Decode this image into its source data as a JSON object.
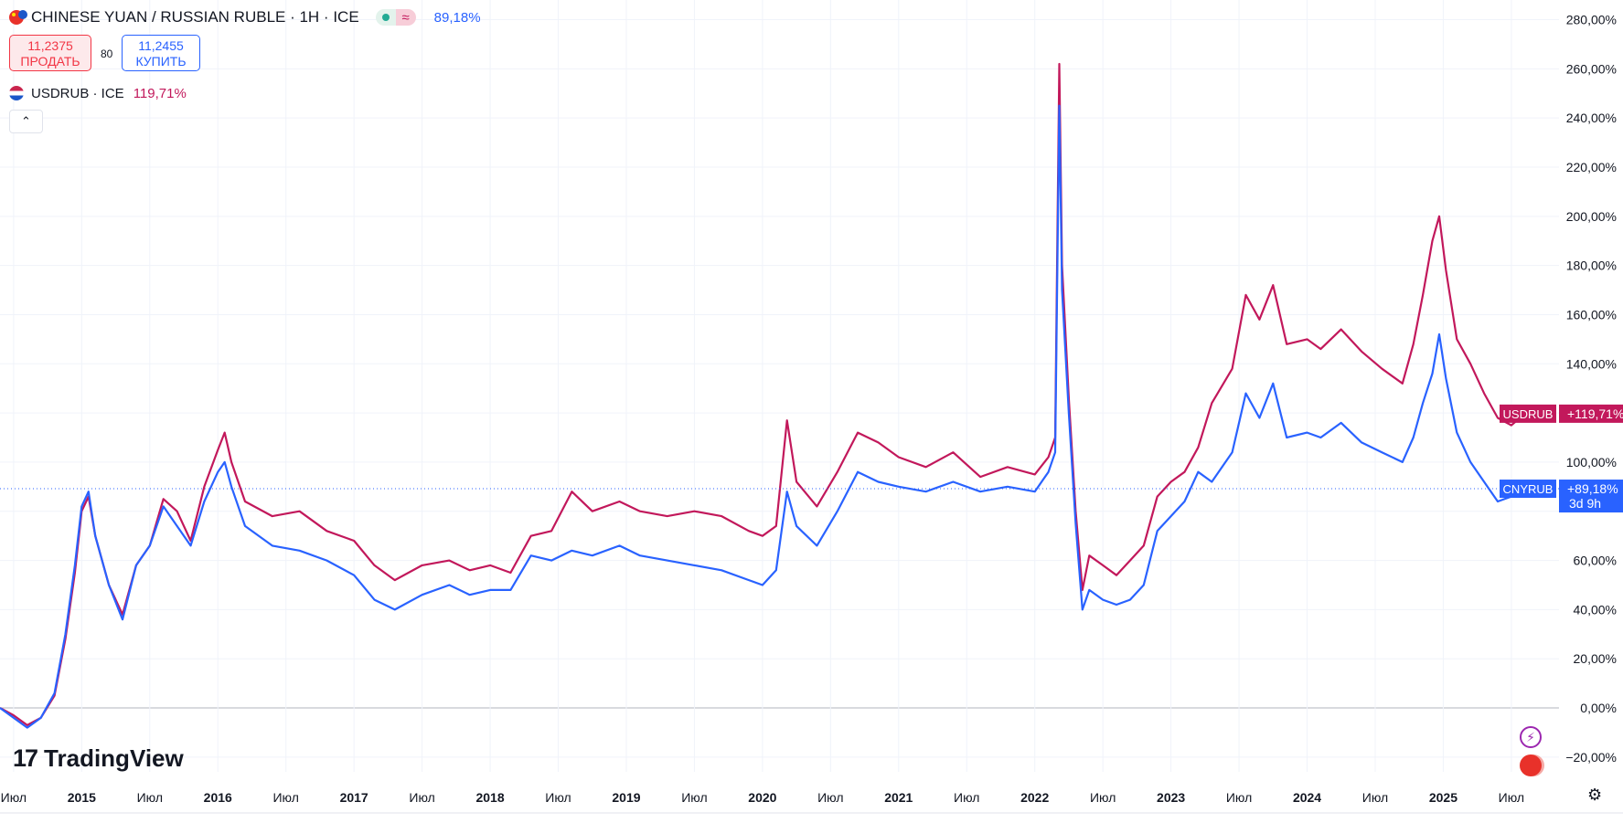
{
  "header": {
    "title": "CHINESE YUAN / RUSSIAN RUBLE · 1H · ICE",
    "main_change": "89,18%",
    "sell_price": "11,2375",
    "sell_label": "ПРОДАТЬ",
    "spread": "80",
    "buy_price": "11,2455",
    "buy_label": "КУПИТЬ",
    "compare_title": "USDRUB · ICE",
    "compare_change": "119,71%"
  },
  "branding": {
    "logo_text": "TradingView"
  },
  "icons": {
    "bolt": "lightning-icon",
    "flag": "china-flag-icon",
    "settings": "settings-icon",
    "collapse": "chevron-up-icon"
  },
  "colors": {
    "cnyrub": "#2962ff",
    "usdrub": "#c2185b",
    "grid": "#f0f3fa",
    "zero_line": "#b2b5be"
  },
  "chart_data": {
    "type": "line",
    "x_labels": [
      "Июл",
      "2015",
      "Июл",
      "2016",
      "Июл",
      "2017",
      "Июл",
      "2018",
      "Июл",
      "2019",
      "Июл",
      "2020",
      "Июл",
      "2021",
      "Июл",
      "2022",
      "Июл",
      "2023",
      "Июл",
      "2024",
      "Июл",
      "2025",
      "Июл"
    ],
    "y_ticks": [
      -20,
      0,
      20,
      40,
      60,
      80,
      100,
      120,
      140,
      160,
      180,
      200,
      220,
      240,
      260,
      280
    ],
    "y_tick_labels": [
      "−20,00%",
      "0,00%",
      "20,00%",
      "40,00%",
      "60,00%",
      "",
      "100,00%",
      "",
      "140,00%",
      "160,00%",
      "180,00%",
      "200,00%",
      "220,00%",
      "240,00%",
      "260,00%",
      "280,00%"
    ],
    "ylim": [
      -26,
      288
    ],
    "xlim": [
      2014.4,
      2025.85
    ],
    "series": [
      {
        "name": "USDRUB",
        "last_label": "+119,71%",
        "last_value": 119.71,
        "points": [
          [
            2014.4,
            0
          ],
          [
            2014.5,
            -3
          ],
          [
            2014.6,
            -7
          ],
          [
            2014.7,
            -4
          ],
          [
            2014.8,
            5
          ],
          [
            2014.88,
            28
          ],
          [
            2014.95,
            55
          ],
          [
            2015.0,
            80
          ],
          [
            2015.05,
            86
          ],
          [
            2015.1,
            70
          ],
          [
            2015.2,
            50
          ],
          [
            2015.3,
            38
          ],
          [
            2015.4,
            58
          ],
          [
            2015.5,
            66
          ],
          [
            2015.6,
            85
          ],
          [
            2015.7,
            80
          ],
          [
            2015.8,
            68
          ],
          [
            2015.9,
            90
          ],
          [
            2016.0,
            105
          ],
          [
            2016.05,
            112
          ],
          [
            2016.1,
            100
          ],
          [
            2016.2,
            84
          ],
          [
            2016.4,
            78
          ],
          [
            2016.6,
            80
          ],
          [
            2016.8,
            72
          ],
          [
            2017.0,
            68
          ],
          [
            2017.15,
            58
          ],
          [
            2017.3,
            52
          ],
          [
            2017.5,
            58
          ],
          [
            2017.7,
            60
          ],
          [
            2017.85,
            56
          ],
          [
            2018.0,
            58
          ],
          [
            2018.15,
            55
          ],
          [
            2018.3,
            70
          ],
          [
            2018.45,
            72
          ],
          [
            2018.6,
            88
          ],
          [
            2018.75,
            80
          ],
          [
            2018.95,
            84
          ],
          [
            2019.1,
            80
          ],
          [
            2019.3,
            78
          ],
          [
            2019.5,
            80
          ],
          [
            2019.7,
            78
          ],
          [
            2019.9,
            72
          ],
          [
            2020.0,
            70
          ],
          [
            2020.1,
            74
          ],
          [
            2020.18,
            117
          ],
          [
            2020.25,
            92
          ],
          [
            2020.4,
            82
          ],
          [
            2020.55,
            96
          ],
          [
            2020.7,
            112
          ],
          [
            2020.85,
            108
          ],
          [
            2021.0,
            102
          ],
          [
            2021.2,
            98
          ],
          [
            2021.4,
            104
          ],
          [
            2021.6,
            94
          ],
          [
            2021.8,
            98
          ],
          [
            2022.0,
            95
          ],
          [
            2022.1,
            102
          ],
          [
            2022.15,
            110
          ],
          [
            2022.18,
            262
          ],
          [
            2022.2,
            180
          ],
          [
            2022.25,
            126
          ],
          [
            2022.3,
            80
          ],
          [
            2022.35,
            48
          ],
          [
            2022.4,
            62
          ],
          [
            2022.5,
            58
          ],
          [
            2022.6,
            54
          ],
          [
            2022.7,
            60
          ],
          [
            2022.8,
            66
          ],
          [
            2022.9,
            86
          ],
          [
            2023.0,
            92
          ],
          [
            2023.1,
            96
          ],
          [
            2023.2,
            106
          ],
          [
            2023.3,
            124
          ],
          [
            2023.45,
            138
          ],
          [
            2023.55,
            168
          ],
          [
            2023.65,
            158
          ],
          [
            2023.75,
            172
          ],
          [
            2023.85,
            148
          ],
          [
            2024.0,
            150
          ],
          [
            2024.1,
            146
          ],
          [
            2024.25,
            154
          ],
          [
            2024.4,
            145
          ],
          [
            2024.55,
            138
          ],
          [
            2024.7,
            132
          ],
          [
            2024.78,
            148
          ],
          [
            2024.85,
            168
          ],
          [
            2024.92,
            190
          ],
          [
            2024.97,
            200
          ],
          [
            2025.02,
            178
          ],
          [
            2025.1,
            150
          ],
          [
            2025.2,
            140
          ],
          [
            2025.3,
            128
          ],
          [
            2025.4,
            118
          ],
          [
            2025.5,
            115
          ],
          [
            2025.6,
            119.71
          ]
        ]
      },
      {
        "name": "CNYRUB",
        "last_label": "+89,18%",
        "last_value": 89.18,
        "last_sublabel": "3d 9h",
        "points": [
          [
            2014.4,
            0
          ],
          [
            2014.5,
            -4
          ],
          [
            2014.6,
            -8
          ],
          [
            2014.7,
            -4
          ],
          [
            2014.8,
            6
          ],
          [
            2014.88,
            30
          ],
          [
            2014.95,
            58
          ],
          [
            2015.0,
            82
          ],
          [
            2015.05,
            88
          ],
          [
            2015.1,
            70
          ],
          [
            2015.2,
            50
          ],
          [
            2015.3,
            36
          ],
          [
            2015.4,
            58
          ],
          [
            2015.5,
            66
          ],
          [
            2015.6,
            82
          ],
          [
            2015.7,
            74
          ],
          [
            2015.8,
            66
          ],
          [
            2015.9,
            84
          ],
          [
            2016.0,
            96
          ],
          [
            2016.05,
            100
          ],
          [
            2016.1,
            90
          ],
          [
            2016.2,
            74
          ],
          [
            2016.4,
            66
          ],
          [
            2016.6,
            64
          ],
          [
            2016.8,
            60
          ],
          [
            2017.0,
            54
          ],
          [
            2017.15,
            44
          ],
          [
            2017.3,
            40
          ],
          [
            2017.5,
            46
          ],
          [
            2017.7,
            50
          ],
          [
            2017.85,
            46
          ],
          [
            2018.0,
            48
          ],
          [
            2018.15,
            48
          ],
          [
            2018.3,
            62
          ],
          [
            2018.45,
            60
          ],
          [
            2018.6,
            64
          ],
          [
            2018.75,
            62
          ],
          [
            2018.95,
            66
          ],
          [
            2019.1,
            62
          ],
          [
            2019.3,
            60
          ],
          [
            2019.5,
            58
          ],
          [
            2019.7,
            56
          ],
          [
            2019.9,
            52
          ],
          [
            2020.0,
            50
          ],
          [
            2020.1,
            56
          ],
          [
            2020.18,
            88
          ],
          [
            2020.25,
            74
          ],
          [
            2020.4,
            66
          ],
          [
            2020.55,
            80
          ],
          [
            2020.7,
            96
          ],
          [
            2020.85,
            92
          ],
          [
            2021.0,
            90
          ],
          [
            2021.2,
            88
          ],
          [
            2021.4,
            92
          ],
          [
            2021.6,
            88
          ],
          [
            2021.8,
            90
          ],
          [
            2022.0,
            88
          ],
          [
            2022.1,
            96
          ],
          [
            2022.15,
            104
          ],
          [
            2022.18,
            245
          ],
          [
            2022.2,
            170
          ],
          [
            2022.25,
            120
          ],
          [
            2022.3,
            75
          ],
          [
            2022.35,
            40
          ],
          [
            2022.4,
            48
          ],
          [
            2022.5,
            44
          ],
          [
            2022.6,
            42
          ],
          [
            2022.7,
            44
          ],
          [
            2022.8,
            50
          ],
          [
            2022.9,
            72
          ],
          [
            2023.0,
            78
          ],
          [
            2023.1,
            84
          ],
          [
            2023.2,
            96
          ],
          [
            2023.3,
            92
          ],
          [
            2023.45,
            104
          ],
          [
            2023.55,
            128
          ],
          [
            2023.65,
            118
          ],
          [
            2023.75,
            132
          ],
          [
            2023.85,
            110
          ],
          [
            2024.0,
            112
          ],
          [
            2024.1,
            110
          ],
          [
            2024.25,
            116
          ],
          [
            2024.4,
            108
          ],
          [
            2024.55,
            104
          ],
          [
            2024.7,
            100
          ],
          [
            2024.78,
            110
          ],
          [
            2024.85,
            124
          ],
          [
            2024.92,
            136
          ],
          [
            2024.97,
            152
          ],
          [
            2025.02,
            134
          ],
          [
            2025.1,
            112
          ],
          [
            2025.2,
            100
          ],
          [
            2025.3,
            92
          ],
          [
            2025.4,
            84
          ],
          [
            2025.5,
            86
          ],
          [
            2025.6,
            89.18
          ]
        ]
      }
    ]
  }
}
